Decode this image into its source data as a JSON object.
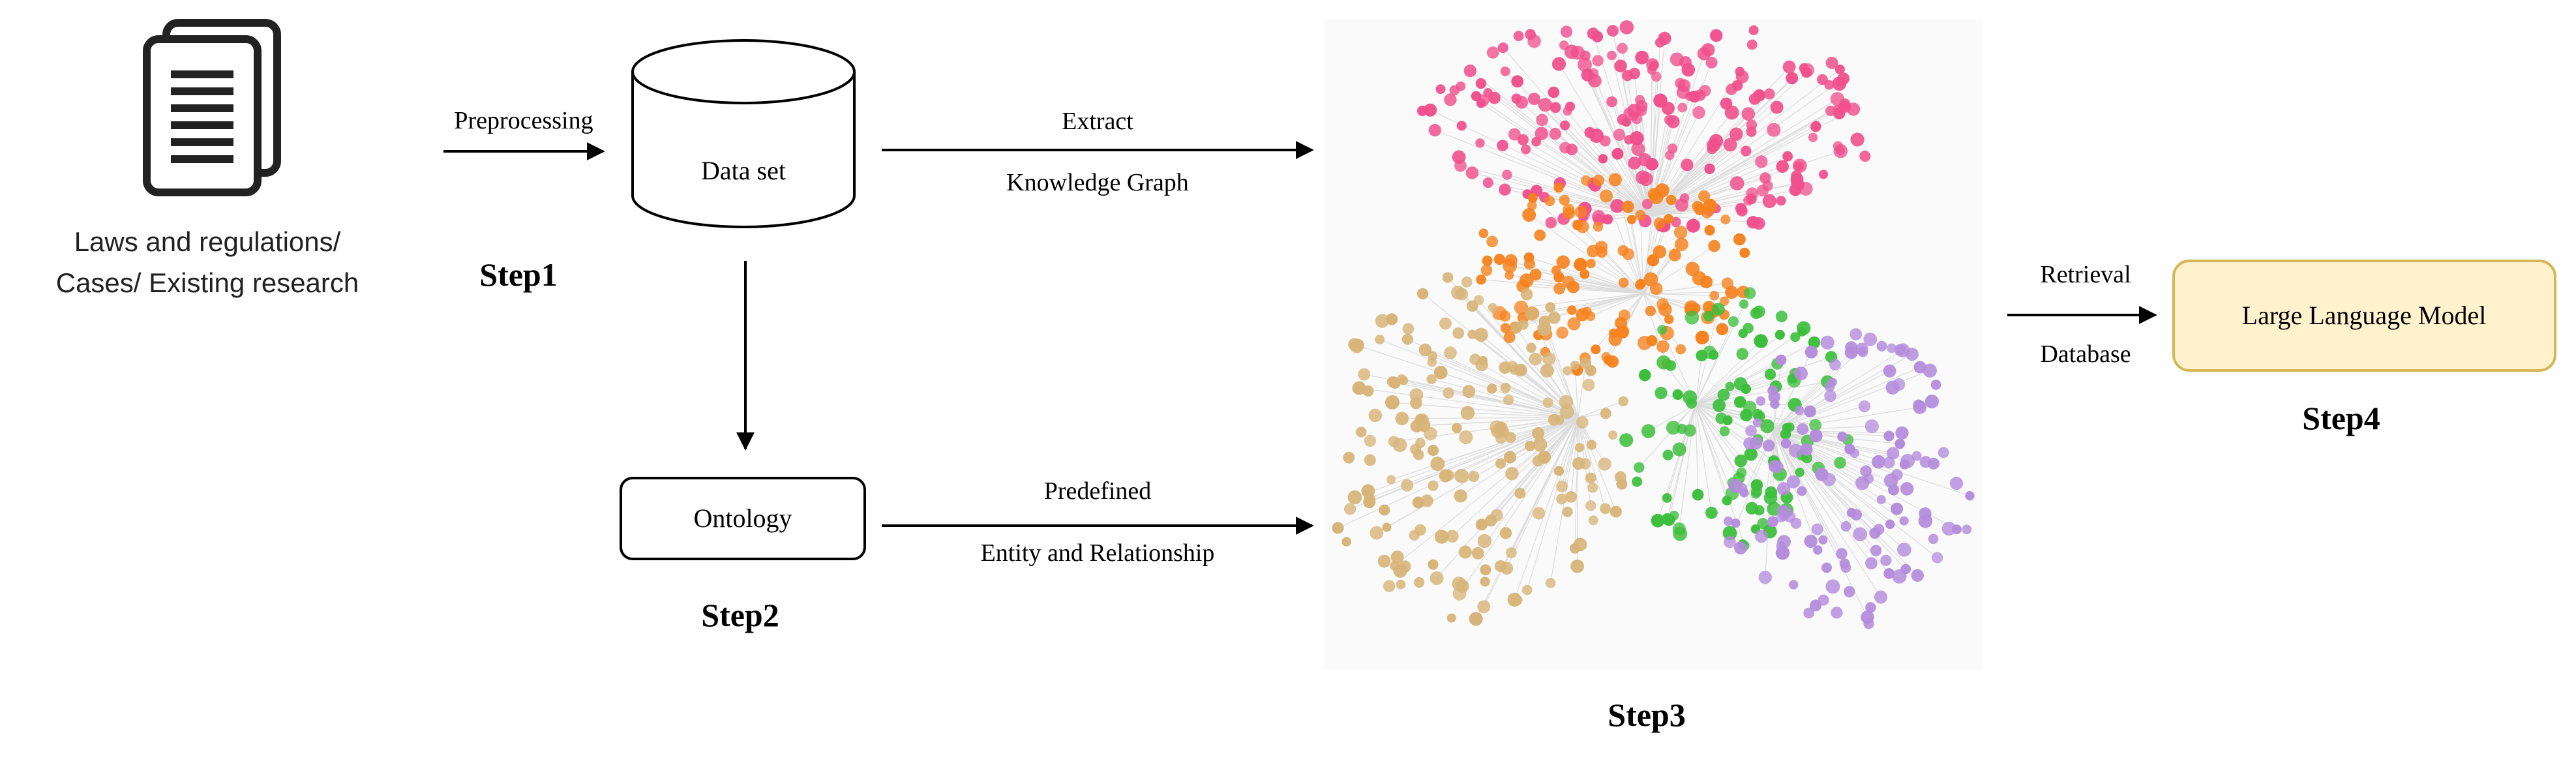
{
  "sources": {
    "label_line1": "Laws and regulations/",
    "label_line2": "Cases/ Existing research",
    "icon": "document-stack-icon"
  },
  "edges": {
    "preprocessing": "Preprocessing",
    "extract": "Extract",
    "knowledge_graph": "Knowledge Graph",
    "predefined": "Predefined",
    "entity_relationship": "Entity and Relationship",
    "retrieval": "Retrieval",
    "database": "Database"
  },
  "nodes": {
    "dataset": "Data set",
    "ontology": "Ontology",
    "llm": "Large Language Model"
  },
  "steps": {
    "step1": "Step1",
    "step2": "Step2",
    "step3": "Step3",
    "step4": "Step4"
  },
  "colors": {
    "stroke": "#000000",
    "llm_fill": "#fff2cc",
    "llm_stroke": "#d6b656",
    "cluster_pink": "#f0508c",
    "cluster_orange": "#f5821e",
    "cluster_tan": "#d7b478",
    "cluster_green": "#3cbe3c",
    "cluster_purple": "#b48cdc",
    "graph_edge": "#dcdcdc"
  }
}
